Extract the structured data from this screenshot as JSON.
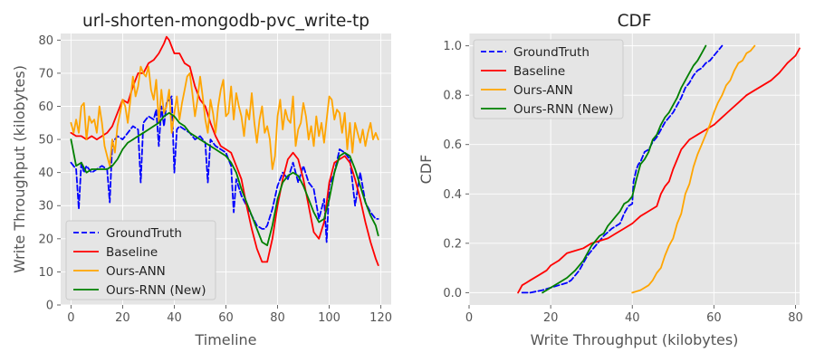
{
  "chart_data": [
    {
      "type": "line",
      "title": "url-shorten-mongodb-pvc_write-tp",
      "xlabel": "Timeline",
      "ylabel": "Write Throughput (kilobytes)",
      "xlim": [
        -4,
        124
      ],
      "ylim": [
        0,
        82
      ],
      "xticks": [
        0,
        20,
        40,
        60,
        80,
        100,
        120
      ],
      "yticks": [
        0,
        10,
        20,
        30,
        40,
        50,
        60,
        70,
        80
      ],
      "grid": true,
      "legend_position": "lower-left",
      "series": [
        {
          "name": "GroundTruth",
          "color": "#0000ff",
          "dash": "dashed",
          "x": [
            0,
            2,
            3,
            4,
            5,
            6,
            8,
            10,
            12,
            14,
            15,
            16,
            17,
            18,
            20,
            22,
            24,
            26,
            27,
            28,
            29,
            30,
            32,
            33,
            34,
            35,
            36,
            37,
            38,
            39,
            40,
            41,
            42,
            44,
            46,
            48,
            50,
            52,
            53,
            54,
            56,
            58,
            60,
            62,
            63,
            64,
            66,
            68,
            70,
            72,
            74,
            75,
            76,
            78,
            80,
            82,
            84,
            86,
            88,
            90,
            92,
            94,
            96,
            98,
            99,
            100,
            102,
            104,
            106,
            108,
            110,
            112,
            114,
            116,
            118,
            119
          ],
          "y": [
            43,
            41,
            29,
            43,
            40,
            42,
            40,
            41,
            42,
            41,
            31,
            49,
            50,
            51,
            50,
            52,
            54,
            53,
            37,
            55,
            56,
            57,
            56,
            59,
            48,
            60,
            54,
            61,
            62,
            63,
            40,
            53,
            54,
            53,
            52,
            50,
            51,
            49,
            37,
            50,
            48,
            47,
            46,
            42,
            28,
            38,
            33,
            30,
            27,
            24,
            23,
            23,
            24,
            29,
            36,
            40,
            38,
            43,
            37,
            42,
            37,
            35,
            26,
            32,
            19,
            36,
            40,
            47,
            46,
            44,
            30,
            40,
            31,
            28,
            26,
            26
          ]
        },
        {
          "name": "Baseline",
          "color": "#ff0000",
          "dash": "solid",
          "x": [
            0,
            2,
            4,
            6,
            8,
            10,
            12,
            14,
            16,
            18,
            20,
            22,
            24,
            26,
            28,
            30,
            32,
            34,
            36,
            37,
            38,
            40,
            42,
            44,
            46,
            48,
            50,
            52,
            54,
            56,
            58,
            60,
            62,
            64,
            66,
            68,
            70,
            72,
            74,
            76,
            78,
            80,
            82,
            84,
            86,
            88,
            90,
            92,
            94,
            96,
            98,
            100,
            102,
            104,
            106,
            108,
            110,
            112,
            114,
            116,
            118,
            119
          ],
          "y": [
            52,
            51,
            51,
            50,
            51,
            50,
            51,
            52,
            54,
            58,
            62,
            61,
            66,
            70,
            70,
            73,
            74,
            76,
            79,
            81,
            80,
            76,
            76,
            73,
            72,
            66,
            62,
            60,
            55,
            51,
            48,
            47,
            46,
            42,
            38,
            30,
            23,
            17,
            13,
            13,
            20,
            30,
            38,
            44,
            46,
            44,
            38,
            30,
            22,
            20,
            25,
            37,
            43,
            44,
            45,
            43,
            38,
            32,
            25,
            19,
            14,
            12
          ]
        },
        {
          "name": "Ours-ANN",
          "color": "#ffa500",
          "dash": "solid",
          "x": [
            0,
            1,
            2,
            3,
            4,
            5,
            6,
            7,
            8,
            9,
            10,
            11,
            12,
            13,
            14,
            15,
            16,
            17,
            18,
            19,
            20,
            21,
            22,
            23,
            24,
            25,
            26,
            27,
            28,
            29,
            30,
            31,
            32,
            33,
            34,
            35,
            36,
            37,
            38,
            39,
            40,
            41,
            42,
            43,
            44,
            45,
            46,
            47,
            48,
            49,
            50,
            51,
            52,
            53,
            54,
            55,
            56,
            57,
            58,
            59,
            60,
            61,
            62,
            63,
            64,
            65,
            66,
            67,
            68,
            69,
            70,
            71,
            72,
            73,
            74,
            75,
            76,
            77,
            78,
            79,
            80,
            81,
            82,
            83,
            84,
            85,
            86,
            87,
            88,
            89,
            90,
            91,
            92,
            93,
            94,
            95,
            96,
            97,
            98,
            99,
            100,
            101,
            102,
            103,
            104,
            105,
            106,
            107,
            108,
            109,
            110,
            111,
            112,
            113,
            114,
            115,
            116,
            117,
            118,
            119
          ],
          "y": [
            55,
            52,
            56,
            52,
            60,
            61,
            50,
            57,
            55,
            56,
            52,
            60,
            55,
            48,
            45,
            42,
            50,
            46,
            54,
            58,
            62,
            60,
            55,
            62,
            69,
            63,
            66,
            72,
            70,
            69,
            72,
            65,
            62,
            68,
            55,
            65,
            58,
            60,
            65,
            52,
            58,
            63,
            56,
            61,
            65,
            69,
            70,
            64,
            57,
            62,
            69,
            63,
            56,
            52,
            62,
            58,
            52,
            60,
            65,
            68,
            57,
            58,
            66,
            56,
            64,
            60,
            57,
            51,
            59,
            56,
            64,
            55,
            49,
            56,
            60,
            52,
            54,
            50,
            41,
            45,
            57,
            62,
            53,
            59,
            56,
            55,
            63,
            48,
            53,
            55,
            61,
            57,
            50,
            54,
            48,
            57,
            51,
            55,
            49,
            56,
            63,
            62,
            56,
            59,
            58,
            52,
            58,
            47,
            55,
            46,
            55,
            52,
            49,
            53,
            48,
            52,
            55,
            50,
            52,
            50
          ]
        },
        {
          "name": "Ours-RNN (New)",
          "color": "#008000",
          "dash": "solid",
          "x": [
            0,
            2,
            4,
            6,
            8,
            10,
            12,
            14,
            16,
            18,
            20,
            22,
            24,
            26,
            28,
            30,
            32,
            34,
            36,
            38,
            40,
            42,
            44,
            46,
            48,
            50,
            52,
            54,
            56,
            58,
            60,
            62,
            64,
            66,
            68,
            70,
            72,
            74,
            76,
            78,
            80,
            82,
            84,
            86,
            88,
            90,
            92,
            94,
            96,
            98,
            100,
            102,
            104,
            106,
            108,
            110,
            112,
            114,
            116,
            118,
            119
          ],
          "y": [
            50,
            42,
            43,
            40,
            41,
            41,
            41,
            41,
            42,
            44,
            47,
            49,
            50,
            51,
            52,
            53,
            54,
            55,
            57,
            58,
            57,
            55,
            54,
            52,
            51,
            50,
            49,
            48,
            47,
            46,
            45,
            43,
            40,
            35,
            31,
            27,
            23,
            19,
            18,
            24,
            32,
            37,
            39,
            40,
            39,
            36,
            32,
            28,
            25,
            26,
            32,
            40,
            45,
            46,
            45,
            41,
            36,
            31,
            27,
            24,
            21
          ]
        }
      ]
    },
    {
      "type": "line",
      "title": "CDF",
      "xlabel": "Write Throughput (kilobytes)",
      "ylabel": "CDF",
      "xlim": [
        0,
        81
      ],
      "ylim": [
        -0.05,
        1.05
      ],
      "xticks": [
        0,
        20,
        40,
        60,
        80
      ],
      "yticks": [
        0.0,
        0.2,
        0.4,
        0.6,
        0.8,
        1.0
      ],
      "ytick_labels": [
        "0.0",
        "0.2",
        "0.4",
        "0.6",
        "0.8",
        "1.0"
      ],
      "grid": true,
      "legend_position": "upper-left",
      "series": [
        {
          "name": "GroundTruth",
          "color": "#0000ff",
          "dash": "dashed",
          "x": [
            13,
            15,
            18,
            20,
            22,
            24,
            25,
            26,
            27,
            28,
            29,
            30,
            31,
            32,
            33,
            35,
            37,
            38,
            39,
            40,
            40.3,
            41,
            41.5,
            42,
            43,
            44,
            45,
            46,
            47,
            48,
            49,
            50,
            51,
            52,
            53,
            54,
            55,
            56,
            57,
            58,
            59,
            60,
            61,
            62
          ],
          "y": [
            0,
            0,
            0.01,
            0.02,
            0.03,
            0.04,
            0.05,
            0.07,
            0.09,
            0.12,
            0.15,
            0.17,
            0.19,
            0.21,
            0.23,
            0.26,
            0.28,
            0.32,
            0.35,
            0.36,
            0.45,
            0.5,
            0.52,
            0.53,
            0.57,
            0.58,
            0.61,
            0.63,
            0.66,
            0.69,
            0.71,
            0.73,
            0.76,
            0.79,
            0.83,
            0.85,
            0.88,
            0.9,
            0.91,
            0.93,
            0.94,
            0.96,
            0.98,
            1.0
          ]
        },
        {
          "name": "Baseline",
          "color": "#ff0000",
          "dash": "solid",
          "x": [
            12,
            13,
            14,
            15,
            17,
            19,
            20,
            22,
            24,
            26,
            28,
            30,
            32,
            34,
            36,
            38,
            40,
            42,
            44,
            46,
            47,
            48,
            49,
            50,
            51,
            52,
            54,
            56,
            58,
            60,
            62,
            64,
            66,
            68,
            70,
            72,
            74,
            76,
            78,
            80,
            81
          ],
          "y": [
            0,
            0.03,
            0.04,
            0.05,
            0.07,
            0.09,
            0.11,
            0.13,
            0.16,
            0.17,
            0.18,
            0.2,
            0.21,
            0.22,
            0.24,
            0.26,
            0.28,
            0.31,
            0.33,
            0.35,
            0.4,
            0.43,
            0.45,
            0.5,
            0.54,
            0.58,
            0.62,
            0.64,
            0.66,
            0.68,
            0.71,
            0.74,
            0.77,
            0.8,
            0.82,
            0.84,
            0.86,
            0.89,
            0.93,
            0.96,
            0.99
          ]
        },
        {
          "name": "Ours-ANN",
          "color": "#ffa500",
          "dash": "solid",
          "x": [
            40,
            42,
            44,
            45,
            46,
            47,
            48,
            49,
            50,
            51,
            52,
            53,
            54,
            55,
            56,
            57,
            58,
            59,
            60,
            61,
            62,
            63,
            64,
            65,
            66,
            67,
            68,
            69,
            70
          ],
          "y": [
            0,
            0.01,
            0.03,
            0.05,
            0.08,
            0.1,
            0.15,
            0.19,
            0.22,
            0.28,
            0.32,
            0.4,
            0.44,
            0.51,
            0.56,
            0.6,
            0.64,
            0.68,
            0.73,
            0.77,
            0.8,
            0.84,
            0.86,
            0.9,
            0.93,
            0.94,
            0.97,
            0.98,
            1.0
          ]
        },
        {
          "name": "Ours-RNN (New)",
          "color": "#008000",
          "dash": "solid",
          "x": [
            18,
            19,
            20,
            22,
            24,
            26,
            28,
            30,
            31,
            32,
            33,
            34,
            35,
            36,
            37,
            38,
            39,
            40,
            41,
            42,
            43,
            44,
            45,
            46,
            47,
            48,
            49,
            50,
            51,
            52,
            53,
            54,
            55,
            56,
            57,
            58
          ],
          "y": [
            0,
            0.01,
            0.02,
            0.04,
            0.06,
            0.09,
            0.13,
            0.19,
            0.21,
            0.23,
            0.24,
            0.27,
            0.29,
            0.31,
            0.33,
            0.36,
            0.37,
            0.39,
            0.46,
            0.52,
            0.54,
            0.57,
            0.62,
            0.64,
            0.68,
            0.71,
            0.73,
            0.76,
            0.79,
            0.83,
            0.86,
            0.89,
            0.92,
            0.94,
            0.97,
            1.0
          ]
        }
      ]
    }
  ]
}
